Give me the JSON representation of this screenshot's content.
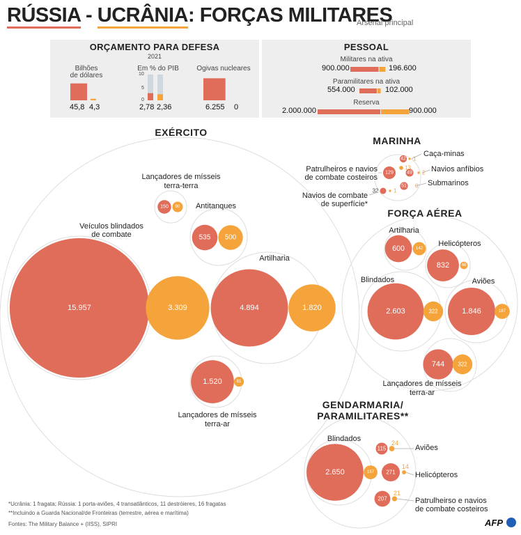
{
  "header": {
    "title_russia": "RÚSSIA",
    "title_sep": " - ",
    "title_ukraine": "UCRÂNIA",
    "title_rest": ": FORÇAS MILITARES",
    "subtitle": "Arsenal principal"
  },
  "colors": {
    "russia": "#e06c5a",
    "ukraine": "#f4a43a",
    "panel": "#eeeeee",
    "ring": "#dddddd"
  },
  "budget": {
    "title": "ORÇAMENTO PARA DEFESA",
    "year": "2021",
    "col1_label_1": "Bilhões",
    "col1_label_2": "de dólares",
    "col2_label": "Em % do PIB",
    "col2_tick_10": "10",
    "col2_tick_5": "5",
    "col2_tick_0": "0",
    "col3_label": "Ogivas nucleares",
    "russia_usd": "45,8",
    "ukraine_usd": "4,3",
    "russia_gdp": "2,78",
    "ukraine_gdp": "2,36",
    "russia_nukes": "6.255",
    "ukraine_nukes": "0"
  },
  "personnel": {
    "title": "PESSOAL",
    "active_label": "Militares na ativa",
    "active_russia": "900.000",
    "active_ukraine": "196.600",
    "para_label": "Paramilitares na ativa",
    "para_russia": "554.000",
    "para_ukraine": "102.000",
    "reserve_label": "Reserva",
    "reserve_russia": "2.000.000",
    "reserve_ukraine": "900.000"
  },
  "army": {
    "title": "EXÉRCITO",
    "ssm_label_1": "Lançadores de mísseis",
    "ssm_label_2": "terra-terra",
    "at_label": "Antitanques",
    "afv_label_1": "Veículos blindados",
    "afv_label_2": "de combate",
    "art_label": "Artilharia",
    "sam_label_1": "Lançadores de mísseis",
    "sam_label_2": "terra-ar"
  },
  "navy": {
    "title": "MARINHA",
    "mine_label": "Caça-minas",
    "patrol_label_1": "Patrulheiros e navios",
    "patrol_label_2": "de combate costeiros",
    "amph_label": "Navios anfíbios",
    "sub_label": "Submarinos",
    "surface_label_1": "Navios de combate",
    "surface_label_2": "de superfície*"
  },
  "airforce": {
    "title": "FORÇA AÉREA",
    "art_label": "Artilharia",
    "heli_label": "Helicópteros",
    "armor_label": "Blindados",
    "plane_label": "Aviões",
    "sam_label_1": "Lançadores de mísseis",
    "sam_label_2": "terra-ar"
  },
  "gendarmerie": {
    "title_1": "GENDARMARIA/",
    "title_2": "PARAMILITARES**",
    "armor_label": "Blindados",
    "plane_label": "Aviões",
    "heli_label": "Helicópteros",
    "patrol_label_1": "Patrulheirso e navios",
    "patrol_label_2": "de combate costeiros"
  },
  "footer": {
    "note1": "*Ucrânia: 1 fragata; Rússia: 1 porta-aviões, 4 transatlânticos, 11 destróieres, 16 fragatas",
    "note2": "**Incluindo a Guarda Nacional/de Fronteiras (terrestre, aérea e marítima)",
    "sources": "Fontes: The Military Balance + (IISS), SIPRI",
    "logo": "AFP"
  },
  "chart_data": [
    {
      "type": "bar",
      "title": "ORÇAMENTO PARA DEFESA",
      "categories": [
        "Bilhões de dólares",
        "Em % do PIB",
        "Ogivas nucleares"
      ],
      "series": [
        {
          "name": "Rússia",
          "values": [
            45.8,
            2.78,
            6255
          ]
        },
        {
          "name": "Ucrânia",
          "values": [
            4.3,
            2.36,
            0
          ]
        }
      ]
    },
    {
      "type": "bar",
      "title": "PESSOAL",
      "categories": [
        "Militares na ativa",
        "Paramilitares na ativa",
        "Reserva"
      ],
      "series": [
        {
          "name": "Rússia",
          "values": [
            900000,
            554000,
            2000000
          ]
        },
        {
          "name": "Ucrânia",
          "values": [
            196600,
            102000,
            900000
          ]
        }
      ]
    },
    {
      "type": "bubble",
      "title": "EXÉRCITO",
      "items": [
        {
          "category": "Lançadores de mísseis terra-terra",
          "russia": 150,
          "ukraine": 90,
          "russia_text": "150",
          "ukraine_text": "90"
        },
        {
          "category": "Antitanques",
          "russia": 535,
          "ukraine": 500,
          "russia_text": "535",
          "ukraine_text": "500"
        },
        {
          "category": "Veículos blindados de combate",
          "russia": 15957,
          "ukraine": 3309,
          "russia_text": "15.957",
          "ukraine_text": "3.309"
        },
        {
          "category": "Artilharia",
          "russia": 4894,
          "ukraine": 1820,
          "russia_text": "4.894",
          "ukraine_text": "1.820"
        },
        {
          "category": "Lançadores de mísseis terra-ar",
          "russia": 1520,
          "ukraine": 81,
          "russia_text": "1.520",
          "ukraine_text": "81"
        }
      ]
    },
    {
      "type": "bubble",
      "title": "MARINHA",
      "items": [
        {
          "category": "Caça-minas",
          "russia": 42,
          "ukraine": 1,
          "russia_text": "42",
          "ukraine_text": "1"
        },
        {
          "category": "Patrulheiros e navios de combate costeiros",
          "russia": 129,
          "ukraine": 13,
          "russia_text": "129",
          "ukraine_text": "13"
        },
        {
          "category": "Navios anfíbios",
          "russia": 49,
          "ukraine": 2,
          "russia_text": "49",
          "ukraine_text": "2"
        },
        {
          "category": "Submarinos",
          "russia": 51,
          "ukraine": 0,
          "russia_text": "51",
          "ukraine_text": "0"
        },
        {
          "category": "Navios de combate de superfície*",
          "russia": 32,
          "ukraine": 1,
          "russia_text": "32",
          "ukraine_text": "1"
        }
      ]
    },
    {
      "type": "bubble",
      "title": "FORÇA AÉREA",
      "items": [
        {
          "category": "Artilharia",
          "russia": 600,
          "ukraine": 142,
          "russia_text": "600",
          "ukraine_text": "142"
        },
        {
          "category": "Helicópteros",
          "russia": 832,
          "ukraine": 46,
          "russia_text": "832",
          "ukraine_text": "46"
        },
        {
          "category": "Blindados",
          "russia": 2603,
          "ukraine": 322,
          "russia_text": "2.603",
          "ukraine_text": "322"
        },
        {
          "category": "Aviões",
          "russia": 1846,
          "ukraine": 187,
          "russia_text": "1.846",
          "ukraine_text": "187"
        },
        {
          "category": "Lançadores de mísseis terra-ar",
          "russia": 744,
          "ukraine": 322,
          "russia_text": "744",
          "ukraine_text": "322"
        }
      ]
    },
    {
      "type": "bubble",
      "title": "GENDARMARIA/PARAMILITARES**",
      "items": [
        {
          "category": "Blindados",
          "russia": 2650,
          "ukraine": 157,
          "russia_text": "2.650",
          "ukraine_text": "157"
        },
        {
          "category": "Aviões",
          "russia": 115,
          "ukraine": 24,
          "russia_text": "115",
          "ukraine_text": "24"
        },
        {
          "category": "Helicópteros",
          "russia": 271,
          "ukraine": 14,
          "russia_text": "271",
          "ukraine_text": "14"
        },
        {
          "category": "Patrulheirso e navios de combate costeiros",
          "russia": 207,
          "ukraine": 21,
          "russia_text": "207",
          "ukraine_text": "21"
        }
      ]
    }
  ]
}
